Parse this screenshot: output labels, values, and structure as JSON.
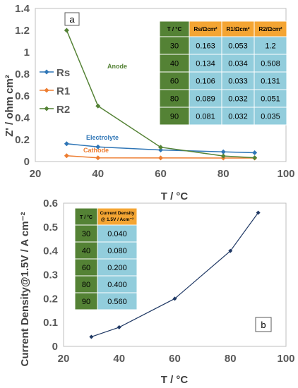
{
  "colors": {
    "rs": "#2E75B6",
    "r1": "#ED7D31",
    "r2": "#548235",
    "anode": "#548235",
    "electrolyte": "#2E75B6",
    "cathode": "#ED7D31",
    "table_green": "#548235",
    "table_orange": "#F4A533",
    "table_cyan": "#92CDDC",
    "curve_b": "#1F3864"
  },
  "chart_data": [
    {
      "type": "line",
      "panel_label": "a",
      "xlabel": "T / °C",
      "ylabel": "Z' / ohm cm²",
      "xlim": [
        20,
        100
      ],
      "ylim": [
        0,
        1.4
      ],
      "xticks": [
        "20",
        "40",
        "60",
        "80",
        "100"
      ],
      "yticks": [
        "0",
        "0.2",
        "0.4",
        "0.6",
        "0.8",
        "1",
        "1.2",
        "1.4"
      ],
      "x": [
        30,
        40,
        60,
        80,
        90
      ],
      "series": [
        {
          "name": "Rs",
          "values": [
            0.163,
            0.134,
            0.106,
            0.089,
            0.081
          ]
        },
        {
          "name": "R1",
          "values": [
            0.053,
            0.034,
            0.033,
            0.032,
            0.032
          ]
        },
        {
          "name": "R2",
          "values": [
            1.2,
            0.508,
            0.131,
            0.051,
            0.035
          ]
        }
      ],
      "annotations": [
        "Anode",
        "Electrolyte",
        "Cathode"
      ],
      "table": {
        "headers": [
          "T / °C",
          "Rs/Ωcm²",
          "R1/Ωcm²",
          "R2/Ωcm²"
        ],
        "rows": [
          [
            "30",
            "0.163",
            "0.053",
            "1.2"
          ],
          [
            "40",
            "0.134",
            "0.034",
            "0.508"
          ],
          [
            "60",
            "0.106",
            "0.033",
            "0.131"
          ],
          [
            "80",
            "0.089",
            "0.032",
            "0.051"
          ],
          [
            "90",
            "0.081",
            "0.032",
            "0.035"
          ]
        ]
      }
    },
    {
      "type": "line",
      "panel_label": "b",
      "xlabel": "T / °C",
      "ylabel": "Current Density@1.5V / A cm⁻²",
      "xlim": [
        20,
        100
      ],
      "ylim": [
        0,
        0.6
      ],
      "xticks": [
        "20",
        "40",
        "60",
        "80",
        "100"
      ],
      "yticks": [
        "0",
        "0.1",
        "0.2",
        "0.3",
        "0.4",
        "0.5",
        "0.6"
      ],
      "x": [
        30,
        40,
        60,
        80,
        90
      ],
      "series": [
        {
          "values": [
            0.04,
            0.08,
            0.2,
            0.4,
            0.56
          ]
        }
      ],
      "table": {
        "headers": [
          "T / °C",
          "Current Density @ 1.5V / Acm⁻²"
        ],
        "rows": [
          [
            "30",
            "0.040"
          ],
          [
            "40",
            "0.080"
          ],
          [
            "60",
            "0.200"
          ],
          [
            "80",
            "0.400"
          ],
          [
            "90",
            "0.560"
          ]
        ]
      }
    }
  ]
}
